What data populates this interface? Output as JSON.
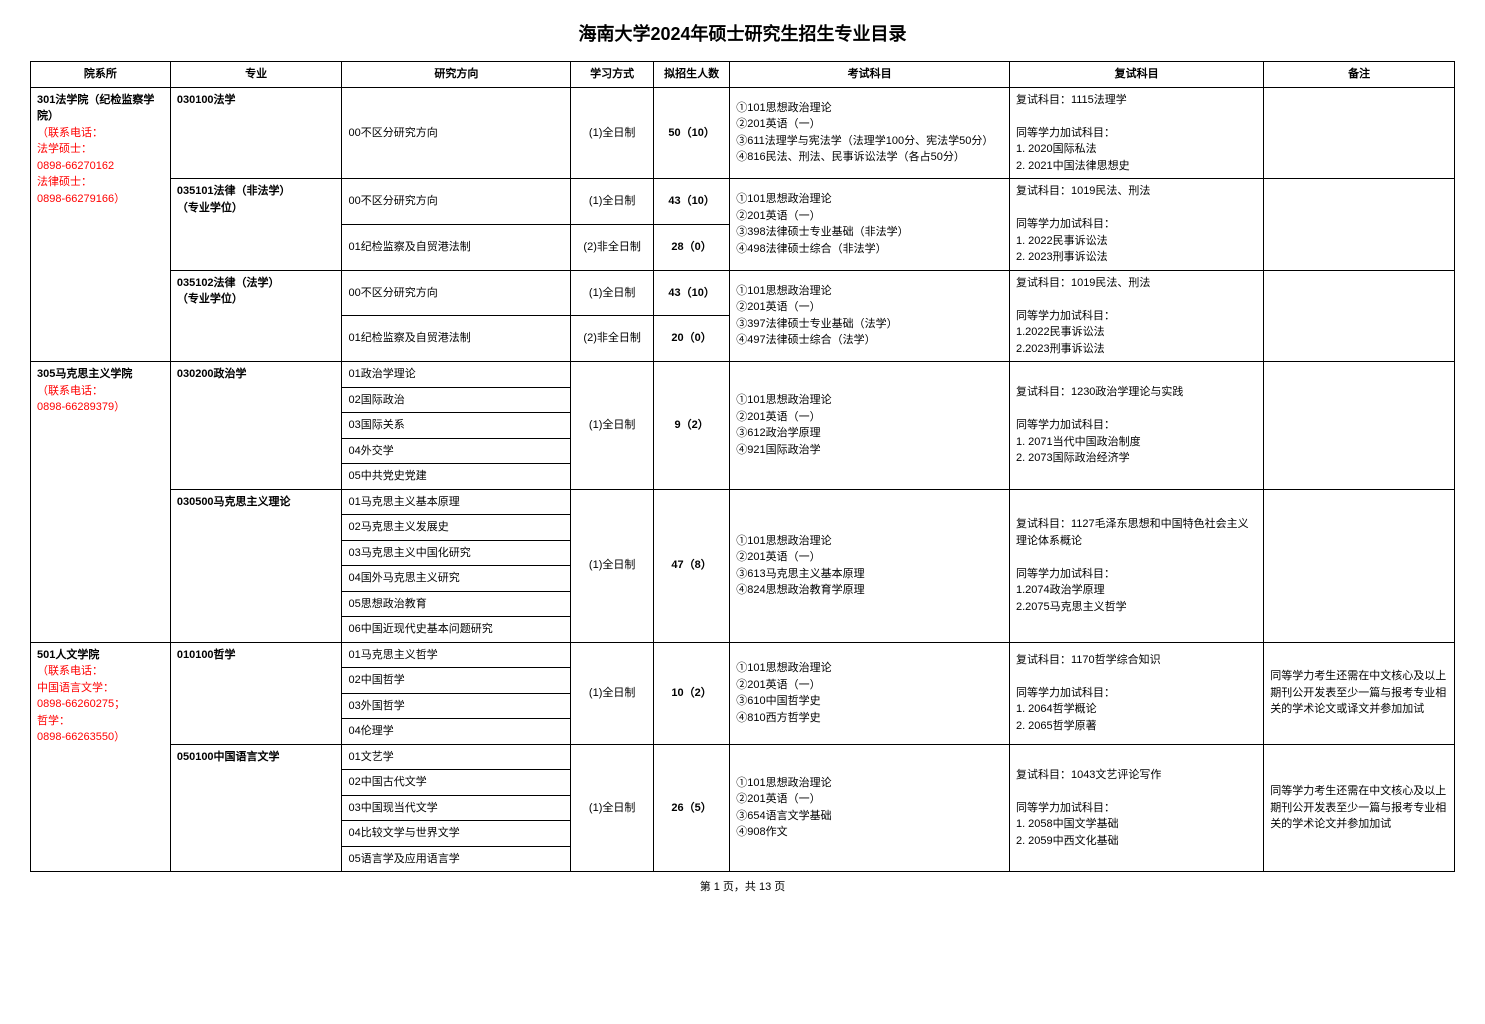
{
  "title": "海南大学2024年硕士研究生招生专业目录",
  "headers": {
    "dept": "院系所",
    "major": "专业",
    "direction": "研究方向",
    "mode": "学习方式",
    "quota": "拟招生人数",
    "exam": "考试科目",
    "reexam": "复试科目",
    "note": "备注"
  },
  "dept301": {
    "name": "301法学院（纪检监察学院）",
    "contact_label": "（联系电话：",
    "law_master_label": "法学硕士：",
    "law_master_phone": "0898-66270162",
    "legal_master_label": "法律硕士：",
    "legal_master_phone": "0898-66279166）"
  },
  "major_030100": {
    "name": "030100法学",
    "dir": "00不区分研究方向",
    "mode": "(1)全日制",
    "quota": "50（10）",
    "exam": "①101思想政治理论\n②201英语（一）\n③611法理学与宪法学（法理学100分、宪法学50分）\n④816民法、刑法、民事诉讼法学（各占50分）",
    "reexam": "复试科目：1115法理学\n\n同等学力加试科目：\n1. 2020国际私法\n2. 2021中国法律思想史"
  },
  "major_035101": {
    "name": "035101法律（非法学）\n（专业学位）",
    "dir1": "00不区分研究方向",
    "mode1": "(1)全日制",
    "quota1": "43（10）",
    "dir2": "01纪检监察及自贸港法制",
    "mode2": "(2)非全日制",
    "quota2": "28（0）",
    "exam": "①101思想政治理论\n②201英语（一）\n③398法律硕士专业基础（非法学）\n④498法律硕士综合（非法学）",
    "reexam": "复试科目：1019民法、刑法\n\n同等学力加试科目：\n1. 2022民事诉讼法\n2. 2023刑事诉讼法"
  },
  "major_035102": {
    "name": "035102法律（法学）\n（专业学位）",
    "dir1": "00不区分研究方向",
    "mode1": "(1)全日制",
    "quota1": "43（10）",
    "dir2": "01纪检监察及自贸港法制",
    "mode2": "(2)非全日制",
    "quota2": "20（0）",
    "exam": "①101思想政治理论\n②201英语（一）\n③397法律硕士专业基础（法学）\n④497法律硕士综合（法学）",
    "reexam": "复试科目：1019民法、刑法\n\n同等学力加试科目：\n1.2022民事诉讼法\n2.2023刑事诉讼法"
  },
  "dept305": {
    "name": "305马克思主义学院",
    "contact": "（联系电话：",
    "phone": "0898-66289379）"
  },
  "major_030200": {
    "name": "030200政治学",
    "dir1": "01政治学理论",
    "dir2": "02国际政治",
    "dir3": "03国际关系",
    "dir4": "04外交学",
    "dir5": "05中共党史党建",
    "mode": "(1)全日制",
    "quota": "9（2）",
    "exam": "①101思想政治理论\n②201英语（一）\n③612政治学原理\n④921国际政治学",
    "reexam": "复试科目：1230政治学理论与实践\n\n同等学力加试科目：\n1. 2071当代中国政治制度\n2. 2073国际政治经济学"
  },
  "major_030500": {
    "name": "030500马克思主义理论",
    "dir1": "01马克思主义基本原理",
    "dir2": "02马克思主义发展史",
    "dir3": "03马克思主义中国化研究",
    "dir4": "04国外马克思主义研究",
    "dir5": "05思想政治教育",
    "dir6": "06中国近现代史基本问题研究",
    "mode": "(1)全日制",
    "quota": "47（8）",
    "exam": "①101思想政治理论\n②201英语（一）\n③613马克思主义基本原理\n④824思想政治教育学原理",
    "reexam": "复试科目：1127毛泽东思想和中国特色社会主义理论体系概论\n\n同等学力加试科目：\n1.2074政治学原理\n2.2075马克思主义哲学"
  },
  "dept501": {
    "name": "501人文学院",
    "contact": "（联系电话：",
    "cn_label": "中国语言文学：",
    "cn_phone": "0898-66260275；",
    "phil_label": "哲学：",
    "phil_phone": "0898-66263550）"
  },
  "major_010100": {
    "name": "010100哲学",
    "dir1": "01马克思主义哲学",
    "dir2": "02中国哲学",
    "dir3": "03外国哲学",
    "dir4": "04伦理学",
    "mode": "(1)全日制",
    "quota": "10（2）",
    "exam": "①101思想政治理论\n②201英语（一）\n③610中国哲学史\n④810西方哲学史",
    "reexam": "复试科目：1170哲学综合知识\n\n同等学力加试科目：\n1. 2064哲学概论\n2. 2065哲学原著",
    "note": "同等学力考生还需在中文核心及以上期刊公开发表至少一篇与报考专业相关的学术论文或译文并参加加试"
  },
  "major_050100": {
    "name": "050100中国语言文学",
    "dir1": "01文艺学",
    "dir2": "02中国古代文学",
    "dir3": "03中国现当代文学",
    "dir4": "04比较文学与世界文学",
    "dir5": "05语言学及应用语言学",
    "mode": "(1)全日制",
    "quota": "26（5）",
    "exam": "①101思想政治理论\n②201英语（一）\n③654语言文学基础\n④908作文",
    "reexam": "复试科目：1043文艺评论写作\n\n同等学力加试科目：\n1. 2058中国文学基础\n2. 2059中西文化基础",
    "note": "同等学力考生还需在中文核心及以上期刊公开发表至少一篇与报考专业相关的学术论文并参加加试"
  },
  "footer": "第 1 页，共 13 页"
}
